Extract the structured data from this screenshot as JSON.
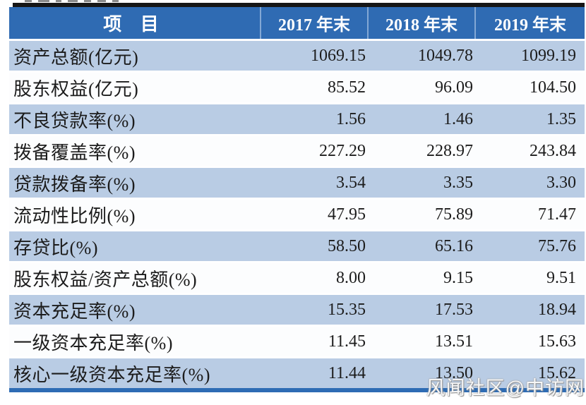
{
  "watermark": "风闻社区@中访网",
  "colors": {
    "header_blue": "#2f6bb3",
    "band_blue": "#b9cce4",
    "row_white": "#fcfdfe",
    "top_border_black": "#161616",
    "bottom_border_blue": "#2e6cb4",
    "text_dark": "#1c1c1c",
    "header_text": "#ffffff"
  },
  "table": {
    "header": {
      "item": "项 目",
      "y2017": "2017 年末",
      "y2018": "2018 年末",
      "y2019": "2019 年末"
    },
    "rows": [
      {
        "label": "资产总额(亿元)",
        "v2017": "1069.15",
        "v2018": "1049.78",
        "v2019": "1099.19"
      },
      {
        "label": "股东权益(亿元)",
        "v2017": "85.52",
        "v2018": "96.09",
        "v2019": "104.50"
      },
      {
        "label": "不良贷款率(%)",
        "v2017": "1.56",
        "v2018": "1.46",
        "v2019": "1.35"
      },
      {
        "label": "拨备覆盖率(%)",
        "v2017": "227.29",
        "v2018": "228.97",
        "v2019": "243.84"
      },
      {
        "label": "贷款拨备率(%)",
        "v2017": "3.54",
        "v2018": "3.35",
        "v2019": "3.30"
      },
      {
        "label": "流动性比例(%)",
        "v2017": "47.95",
        "v2018": "75.89",
        "v2019": "71.47"
      },
      {
        "label": "存贷比(%)",
        "v2017": "58.50",
        "v2018": "65.16",
        "v2019": "75.76"
      },
      {
        "label": "股东权益/资产总额(%)",
        "v2017": "8.00",
        "v2018": "9.15",
        "v2019": "9.51"
      },
      {
        "label": "资本充足率(%)",
        "v2017": "15.35",
        "v2018": "17.53",
        "v2019": "18.94"
      },
      {
        "label": "一级资本充足率(%)",
        "v2017": "11.45",
        "v2018": "13.51",
        "v2019": "15.63"
      },
      {
        "label": "核心一级资本充足率(%)",
        "v2017": "11.44",
        "v2018": "13.50",
        "v2019": "15.62"
      }
    ]
  },
  "chart_data": {
    "type": "table",
    "title": "",
    "columns": [
      "项目",
      "2017 年末",
      "2018 年末",
      "2019 年末"
    ],
    "rows": [
      [
        "资产总额(亿元)",
        1069.15,
        1049.78,
        1099.19
      ],
      [
        "股东权益(亿元)",
        85.52,
        96.09,
        104.5
      ],
      [
        "不良贷款率(%)",
        1.56,
        1.46,
        1.35
      ],
      [
        "拨备覆盖率(%)",
        227.29,
        228.97,
        243.84
      ],
      [
        "贷款拨备率(%)",
        3.54,
        3.35,
        3.3
      ],
      [
        "流动性比例(%)",
        47.95,
        75.89,
        71.47
      ],
      [
        "存贷比(%)",
        58.5,
        65.16,
        75.76
      ],
      [
        "股东权益/资产总额(%)",
        8.0,
        9.15,
        9.51
      ],
      [
        "资本充足率(%)",
        15.35,
        17.53,
        18.94
      ],
      [
        "一级资本充足率(%)",
        11.45,
        13.51,
        15.63
      ],
      [
        "核心一级资本充足率(%)",
        11.44,
        13.5,
        15.62
      ]
    ],
    "layout": {
      "banded_rows": true,
      "header_fill": "#2f6bb3",
      "band_fill": "#b9cce4"
    }
  }
}
